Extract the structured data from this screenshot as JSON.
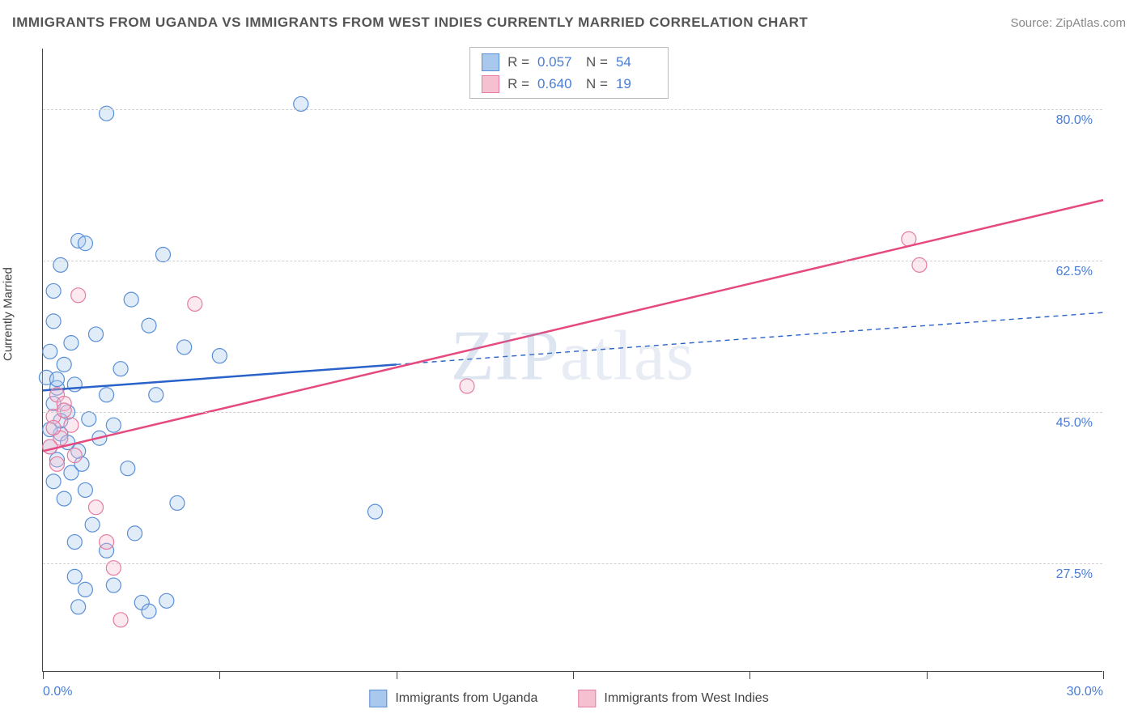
{
  "title": "IMMIGRANTS FROM UGANDA VS IMMIGRANTS FROM WEST INDIES CURRENTLY MARRIED CORRELATION CHART",
  "source": "Source: ZipAtlas.com",
  "y_axis_label": "Currently Married",
  "watermark": "ZIPatlas",
  "chart": {
    "type": "scatter",
    "xlim": [
      0,
      30
    ],
    "ylim": [
      15,
      87
    ],
    "x_ticks": [
      0,
      30
    ],
    "x_tick_labels": [
      "0.0%",
      "30.0%"
    ],
    "x_minor_ticks": [
      5,
      10,
      15,
      20,
      25
    ],
    "y_gridlines": [
      27.5,
      45.0,
      62.5,
      80.0
    ],
    "y_tick_labels": [
      "27.5%",
      "45.0%",
      "62.5%",
      "80.0%"
    ],
    "background_color": "#ffffff",
    "grid_color": "#d0d0d0",
    "axis_color": "#444444",
    "label_color": "#4a7dd6",
    "marker_radius": 9,
    "marker_stroke_width": 1.2,
    "marker_fill_opacity": 0.35,
    "line_width_solid": 2.5,
    "line_width_dash": 1.4,
    "dash_pattern": "6,5"
  },
  "series": [
    {
      "name": "Immigrants from Uganda",
      "color_fill": "#a9c8ee",
      "color_stroke": "#5a8fd6",
      "color_line": "#2962c9",
      "R": "0.057",
      "N": "54",
      "trend": {
        "x1": 0,
        "y1": 47.5,
        "x2": 30,
        "y2": 56.5,
        "dash_after_x": 10
      },
      "points": [
        [
          1.8,
          79.5
        ],
        [
          7.3,
          80.6
        ],
        [
          1.0,
          64.8
        ],
        [
          1.2,
          64.5
        ],
        [
          3.4,
          63.2
        ],
        [
          0.5,
          62.0
        ],
        [
          0.3,
          59.0
        ],
        [
          2.5,
          58.0
        ],
        [
          3.0,
          55.0
        ],
        [
          0.8,
          53.0
        ],
        [
          1.5,
          54.0
        ],
        [
          4.0,
          52.5
        ],
        [
          0.2,
          52.0
        ],
        [
          0.6,
          50.5
        ],
        [
          5.0,
          51.5
        ],
        [
          2.2,
          50.0
        ],
        [
          0.1,
          49.0
        ],
        [
          0.4,
          47.8
        ],
        [
          0.9,
          48.2
        ],
        [
          1.8,
          47.0
        ],
        [
          3.2,
          47.0
        ],
        [
          0.3,
          46.0
        ],
        [
          0.7,
          45.0
        ],
        [
          1.3,
          44.2
        ],
        [
          2.0,
          43.5
        ],
        [
          0.5,
          42.5
        ],
        [
          0.2,
          41.0
        ],
        [
          1.0,
          40.5
        ],
        [
          1.6,
          42.0
        ],
        [
          0.4,
          39.5
        ],
        [
          0.8,
          38.0
        ],
        [
          2.4,
          38.5
        ],
        [
          0.3,
          37.0
        ],
        [
          1.2,
          36.0
        ],
        [
          0.6,
          35.0
        ],
        [
          3.8,
          34.5
        ],
        [
          9.4,
          33.5
        ],
        [
          1.4,
          32.0
        ],
        [
          2.6,
          31.0
        ],
        [
          0.9,
          30.0
        ],
        [
          1.8,
          29.0
        ],
        [
          2.8,
          23.0
        ],
        [
          3.5,
          23.2
        ],
        [
          1.2,
          24.5
        ],
        [
          2.0,
          25.0
        ],
        [
          0.9,
          26.0
        ],
        [
          3.0,
          22.0
        ],
        [
          1.0,
          22.5
        ],
        [
          0.3,
          55.5
        ],
        [
          0.5,
          44.0
        ],
        [
          0.2,
          43.0
        ],
        [
          0.7,
          41.5
        ],
        [
          1.1,
          39.0
        ],
        [
          0.4,
          48.8
        ]
      ]
    },
    {
      "name": "Immigrants from West Indies",
      "color_fill": "#f5c1d0",
      "color_stroke": "#e57ba1",
      "color_line": "#e6497d",
      "R": "0.640",
      "N": "19",
      "trend": {
        "x1": 0,
        "y1": 40.5,
        "x2": 30,
        "y2": 69.5,
        "dash_after_x": 30
      },
      "points": [
        [
          24.5,
          65.0
        ],
        [
          24.8,
          62.0
        ],
        [
          12.0,
          48.0
        ],
        [
          4.3,
          57.5
        ],
        [
          1.0,
          58.5
        ],
        [
          0.4,
          47.0
        ],
        [
          0.6,
          46.0
        ],
        [
          0.3,
          44.5
        ],
        [
          0.8,
          43.5
        ],
        [
          0.5,
          42.0
        ],
        [
          0.2,
          41.0
        ],
        [
          0.9,
          40.0
        ],
        [
          0.4,
          39.0
        ],
        [
          1.5,
          34.0
        ],
        [
          1.8,
          30.0
        ],
        [
          2.0,
          27.0
        ],
        [
          2.2,
          21.0
        ],
        [
          0.6,
          45.2
        ],
        [
          0.3,
          43.2
        ]
      ]
    }
  ],
  "legend_top_labels": {
    "R": "R =",
    "N": "N ="
  },
  "legend_bottom": [
    {
      "label": "Immigrants from Uganda",
      "fill": "#a9c8ee",
      "stroke": "#5a8fd6"
    },
    {
      "label": "Immigrants from West Indies",
      "fill": "#f5c1d0",
      "stroke": "#e57ba1"
    }
  ]
}
